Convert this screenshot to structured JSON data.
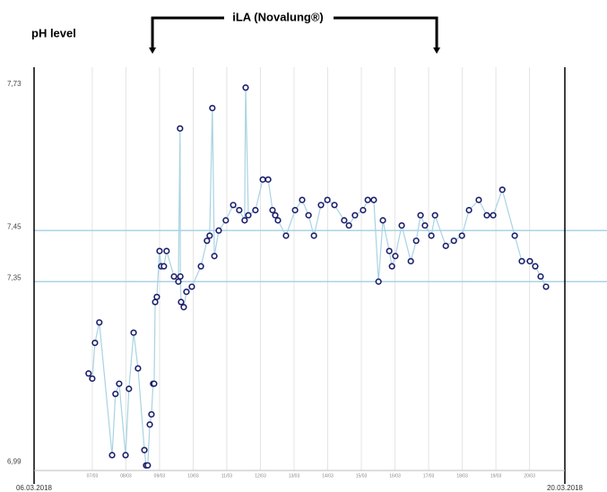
{
  "chart_data": {
    "type": "line",
    "ylabel": "pH level",
    "annotation": {
      "text": "iLA (Novalung®)",
      "start": 8.79,
      "end": 17.24
    },
    "start_label": "06.03.2018",
    "end_label": "20.03.2018",
    "xlim": [
      5.27,
      21.05
    ],
    "xticks": [
      {
        "value": 7,
        "label": "07/03"
      },
      {
        "value": 8,
        "label": "08/03"
      },
      {
        "value": 9,
        "label": "09/03"
      },
      {
        "value": 10,
        "label": "10/03"
      },
      {
        "value": 11,
        "label": "11/03"
      },
      {
        "value": 12,
        "label": "12/03"
      },
      {
        "value": 13,
        "label": "13/03"
      },
      {
        "value": 14,
        "label": "14/03"
      },
      {
        "value": 15,
        "label": "15/03"
      },
      {
        "value": 16,
        "label": "16/03"
      },
      {
        "value": 17,
        "label": "17/03"
      },
      {
        "value": 18,
        "label": "18/03"
      },
      {
        "value": 19,
        "label": "19/03"
      },
      {
        "value": 20,
        "label": "20/03"
      }
    ],
    "ylim": [
      6.98,
      7.77
    ],
    "yticks": [
      {
        "value": 6.99,
        "label": "6,99"
      },
      {
        "value": 7.35,
        "label": "7,35"
      },
      {
        "value": 7.45,
        "label": "7,45"
      },
      {
        "value": 7.73,
        "label": "7,73"
      }
    ],
    "reference_lines": [
      7.35,
      7.45
    ],
    "grid": true,
    "color": "#a9d3e3",
    "marker_color": "#1c1f6b",
    "x": [
      6.89,
      7.0,
      7.08,
      7.21,
      7.59,
      7.69,
      7.8,
      7.99,
      8.09,
      8.23,
      8.36,
      8.55,
      8.6,
      8.65,
      8.71,
      8.76,
      8.81,
      8.84,
      8.87,
      8.92,
      9.0,
      9.05,
      9.13,
      9.21,
      9.43,
      9.56,
      9.61,
      9.62,
      9.64,
      9.72,
      9.8,
      9.96,
      10.23,
      10.41,
      10.49,
      10.57,
      10.63,
      10.76,
      10.97,
      11.19,
      11.37,
      11.53,
      11.56,
      11.64,
      11.85,
      12.07,
      12.23,
      12.36,
      12.44,
      12.52,
      12.76,
      13.03,
      13.24,
      13.43,
      13.59,
      13.8,
      13.99,
      14.2,
      14.49,
      14.63,
      14.81,
      15.05,
      15.19,
      15.37,
      15.51,
      15.64,
      15.83,
      15.91,
      16.01,
      16.2,
      16.47,
      16.63,
      16.76,
      16.89,
      17.08,
      17.19,
      17.51,
      17.75,
      17.99,
      18.2,
      18.49,
      18.73,
      18.92,
      19.19,
      19.56,
      19.77,
      20.01,
      20.17,
      20.33,
      20.49
    ],
    "values": [
      7.17,
      7.16,
      7.23,
      7.27,
      7.01,
      7.13,
      7.15,
      7.01,
      7.14,
      7.25,
      7.18,
      7.02,
      6.99,
      6.99,
      7.07,
      7.09,
      7.15,
      7.15,
      7.31,
      7.32,
      7.41,
      7.38,
      7.38,
      7.41,
      7.36,
      7.35,
      7.65,
      7.36,
      7.31,
      7.3,
      7.33,
      7.34,
      7.38,
      7.43,
      7.44,
      7.69,
      7.4,
      7.45,
      7.47,
      7.5,
      7.49,
      7.47,
      7.73,
      7.48,
      7.49,
      7.55,
      7.55,
      7.49,
      7.48,
      7.47,
      7.44,
      7.49,
      7.51,
      7.48,
      7.44,
      7.5,
      7.51,
      7.5,
      7.47,
      7.46,
      7.48,
      7.49,
      7.51,
      7.51,
      7.35,
      7.47,
      7.41,
      7.38,
      7.4,
      7.46,
      7.39,
      7.43,
      7.48,
      7.46,
      7.44,
      7.48,
      7.42,
      7.43,
      7.44,
      7.49,
      7.51,
      7.48,
      7.48,
      7.53,
      7.44,
      7.39,
      7.39,
      7.38,
      7.36,
      7.34
    ]
  }
}
